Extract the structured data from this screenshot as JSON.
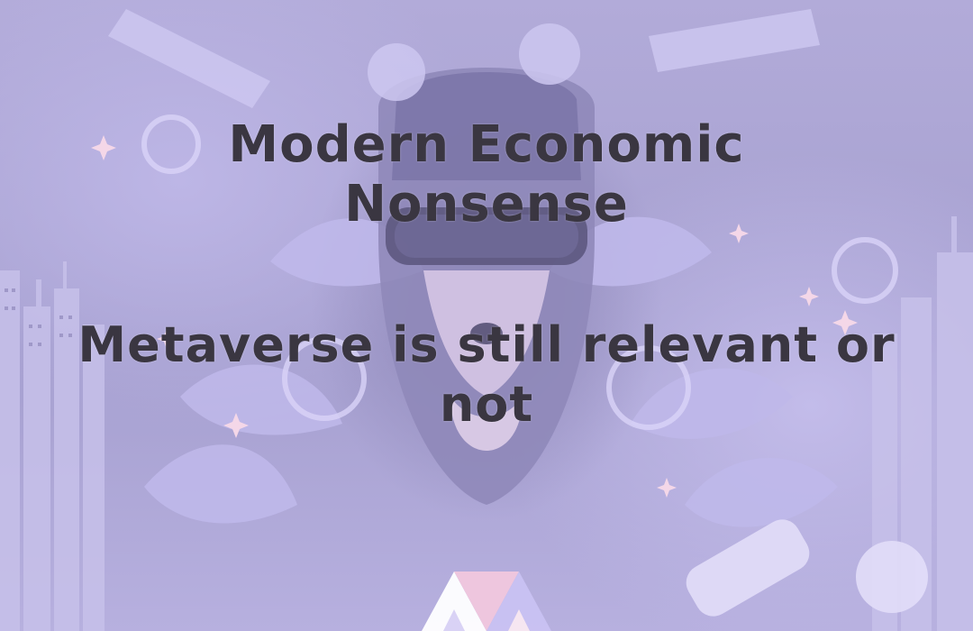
{
  "title": "Modern Economic Nonsense",
  "subtitle": "Metaverse is still relevant or not",
  "background": {
    "illustration": "vr-headset-person-with-leaves-and-city",
    "tint": "#b2abd9"
  },
  "logo": {
    "icon": "triangle-m-logo-icon",
    "colors": [
      "#ffffff",
      "#f1c7dd",
      "#c9c2f2"
    ]
  }
}
